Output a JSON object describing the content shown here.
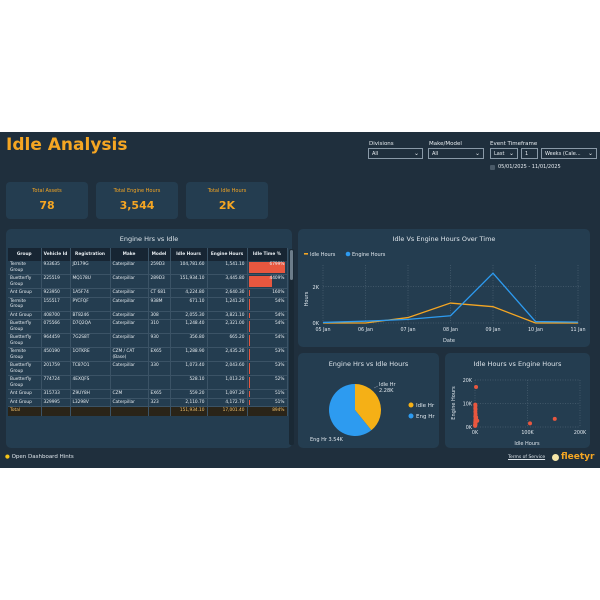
{
  "header": {
    "title": "Idle Analysis"
  },
  "filters": {
    "divisions": {
      "label": "Divisions",
      "value": "All"
    },
    "make_model": {
      "label": "Make/Model",
      "value": "All"
    },
    "event_timeframe": {
      "label": "Event Timeframe",
      "mode": "Last",
      "count": "1",
      "unit": "Weeks (Cale..."
    },
    "date_range": "05/01/2025 - 11/01/2025"
  },
  "kpis": [
    {
      "label": "Total Assets",
      "value": "78"
    },
    {
      "label": "Total Engine Hours",
      "value": "3,544"
    },
    {
      "label": "Total Idle Hours",
      "value": "2K"
    }
  ],
  "table": {
    "title": "Engine Hrs vs Idle",
    "columns": [
      "Group",
      "Vehicle Id",
      "Registration",
      "Make",
      "Model",
      "Idle Hours",
      "Engine Hours",
      "Idle Time %"
    ],
    "rows": [
      [
        "Termite Group",
        "933635",
        "JD179G",
        "Caterpillar",
        "259D3",
        "104,781.60",
        "1,541.10",
        "6799%"
      ],
      [
        "Buetterfly Group",
        "225519",
        "MQ178U",
        "Caterpillar",
        "289D3",
        "151,934.10",
        "3,445.80",
        "4409%"
      ],
      [
        "Ant Group",
        "923950",
        "1A5F74",
        "Caterpillar",
        "CT 681",
        "4,224.80",
        "2,640.30",
        "160%"
      ],
      [
        "Termite Group",
        "155517",
        "PYCFQF",
        "Caterpillar",
        "938M",
        "671.10",
        "1,241.20",
        "54%"
      ],
      [
        "Ant Group",
        "408700",
        "BT8246",
        "Caterpillar",
        "308",
        "2,055.30",
        "3,821.10",
        "54%"
      ],
      [
        "Buetterfly Group",
        "075566",
        "D7Q2QA",
        "Caterpillar",
        "310",
        "1,248.40",
        "2,321.00",
        "54%"
      ],
      [
        "Buetterfly Group",
        "964459",
        "7G2S8T",
        "Caterpillar",
        "930",
        "356.80",
        "665.20",
        "54%"
      ],
      [
        "Termite Group",
        "450190",
        "1OTKRE",
        "CZM / CAT (Base)",
        "EX65",
        "1,288.90",
        "2,435.20",
        "53%"
      ],
      [
        "Buetterfly Group",
        "201759",
        "TC87O1",
        "Caterpillar",
        "330",
        "1,073.40",
        "2,043.60",
        "53%"
      ],
      [
        "Buetterfly Group",
        "774724",
        "4EXQFS",
        "",
        "",
        "528.10",
        "1,013.20",
        "52%"
      ],
      [
        "Ant Group",
        "315733",
        "Z9UY8H",
        "CZM",
        "EX65",
        "559.20",
        "1,097.20",
        "51%"
      ],
      [
        "Ant Group",
        "329995",
        "L3298V",
        "Caterpillar",
        "323",
        "2,110.70",
        "4,172.70",
        "51%"
      ]
    ],
    "idle_pct_values": [
      6799,
      4409,
      160,
      54,
      54,
      54,
      54,
      53,
      53,
      52,
      51,
      51
    ],
    "total": [
      "Total",
      "",
      "",
      "",
      "",
      "151,934.10",
      "17,001.40",
      "894%"
    ]
  },
  "chart_data": [
    {
      "type": "line",
      "title": "Idle Vs Engine Hours Over Time",
      "xlabel": "Date",
      "ylabel": "Hours",
      "categories": [
        "05 Jan",
        "06 Jan",
        "07 Jan",
        "08 Jan",
        "09 Jan",
        "10 Jan",
        "11 Jan"
      ],
      "yticks": [
        "0K",
        "2K"
      ],
      "ylim": [
        0,
        3200
      ],
      "series": [
        {
          "name": "Idle Hours",
          "color": "#f5a623",
          "values": [
            0,
            0,
            300,
            1100,
            900,
            0,
            0
          ]
        },
        {
          "name": "Engine Hours",
          "color": "#2d9bf0",
          "values": [
            30,
            100,
            200,
            400,
            2750,
            80,
            50
          ]
        }
      ]
    },
    {
      "type": "pie",
      "title": "Engine Hrs vs Idle Hours",
      "slices": [
        {
          "name": "Idle Hr",
          "value": 2280,
          "label": "2.28K",
          "color": "#f5b016"
        },
        {
          "name": "Eng Hr",
          "value": 3540,
          "label": "3.54K",
          "color": "#2d9bf0"
        }
      ],
      "legend": "right",
      "callouts": [
        "Idle Hr",
        "2.28K",
        "Eng Hr 3.54K"
      ]
    },
    {
      "type": "scatter",
      "title": "Idle Hours vs Engine Hours",
      "xlabel": "Idle Hours",
      "ylabel": "Engine Hours",
      "xlim": [
        0,
        200000
      ],
      "ylim": [
        0,
        20000
      ],
      "xticks": [
        "0K",
        "100K",
        "200K"
      ],
      "yticks": [
        "0K",
        "10K",
        "20K"
      ],
      "color": "#e8573f",
      "points": [
        [
          2000,
          17000
        ],
        [
          104781,
          1541
        ],
        [
          151934,
          3446
        ],
        [
          500,
          9500
        ],
        [
          800,
          9000
        ],
        [
          600,
          8000
        ],
        [
          900,
          7500
        ],
        [
          700,
          6500
        ],
        [
          1000,
          5500
        ],
        [
          600,
          4500
        ],
        [
          1200,
          3800
        ],
        [
          800,
          3000
        ],
        [
          2055,
          3821
        ],
        [
          1248,
          2321
        ],
        [
          4224,
          2640
        ],
        [
          671,
          1241
        ],
        [
          356,
          665
        ],
        [
          1288,
          2435
        ],
        [
          1073,
          2043
        ],
        [
          528,
          1013
        ],
        [
          559,
          1097
        ],
        [
          2110,
          4172
        ],
        [
          500,
          2000
        ],
        [
          300,
          500
        ]
      ]
    }
  ],
  "footer": {
    "hints": "Open Dashboard Hints",
    "terms": "Terms of Service",
    "logo": "fleetyr"
  }
}
